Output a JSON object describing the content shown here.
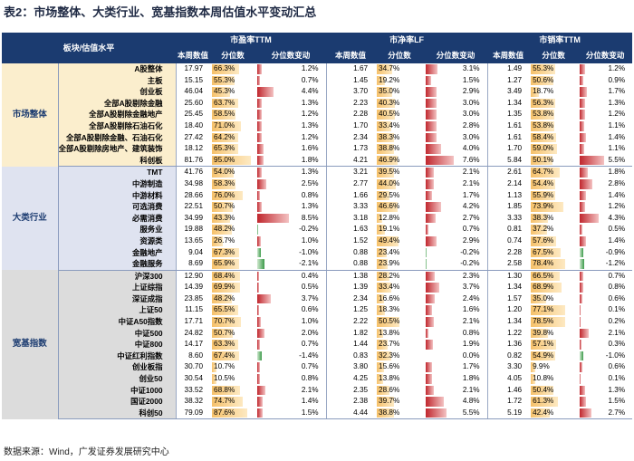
{
  "title": "表2：市场整体、大类行业、宽基指数本周估值水平变动汇总",
  "source": "数据来源：Wind，广发证券发展研究中心",
  "header": {
    "corner": "板块/估值水平",
    "groups": [
      "市盈率TTM",
      "市净率LF",
      "市销率TTM"
    ],
    "cols": [
      "本周数值",
      "分位数",
      "分位数变动"
    ]
  },
  "colors": {
    "header_bg": "#1b3b70",
    "pct_bar": "#f6c16a",
    "chg_pos": "#c0262d",
    "chg_neg": "#3c9a4a",
    "group1_bg": "#fbeecd",
    "group2_bg": "#dfe3f0",
    "group3_bg": "#dcdcdc"
  },
  "groups": [
    {
      "label": "市场整体",
      "rows": [
        {
          "name": "A股整体",
          "pe": [
            "17.97",
            "66.3%",
            "1.2%"
          ],
          "pb": [
            "1.67",
            "34.7%",
            "3.1%"
          ],
          "ps": [
            "1.49",
            "55.3%",
            "1.2%"
          ]
        },
        {
          "name": "主板",
          "pe": [
            "15.15",
            "55.3%",
            "0.7%"
          ],
          "pb": [
            "1.45",
            "19.2%",
            "1.5%"
          ],
          "ps": [
            "1.27",
            "50.6%",
            "0.9%"
          ]
        },
        {
          "name": "创业板",
          "pe": [
            "46.04",
            "45.3%",
            "4.4%"
          ],
          "pb": [
            "3.70",
            "35.0%",
            "2.9%"
          ],
          "ps": [
            "3.49",
            "18.7%",
            "1.7%"
          ]
        },
        {
          "name": "全部A股剔除金融",
          "pe": [
            "25.60",
            "63.7%",
            "1.3%"
          ],
          "pb": [
            "2.23",
            "40.3%",
            "3.0%"
          ],
          "ps": [
            "1.34",
            "56.3%",
            "1.3%"
          ]
        },
        {
          "name": "全部A股剔除金融地产",
          "pe": [
            "25.45",
            "58.5%",
            "1.2%"
          ],
          "pb": [
            "2.28",
            "40.5%",
            "3.0%"
          ],
          "ps": [
            "1.35",
            "53.8%",
            "1.2%"
          ]
        },
        {
          "name": "全部A股剔除石油石化",
          "pe": [
            "18.40",
            "71.0%",
            "1.3%"
          ],
          "pb": [
            "1.70",
            "33.4%",
            "2.8%"
          ],
          "ps": [
            "1.61",
            "53.8%",
            "1.1%"
          ]
        },
        {
          "name": "全部A股剔除金融、石油石化",
          "pe": [
            "27.42",
            "64.2%",
            "1.2%"
          ],
          "pb": [
            "2.34",
            "38.3%",
            "3.0%"
          ],
          "ps": [
            "1.61",
            "58.4%",
            "1.4%"
          ]
        },
        {
          "name": "全部A股剔除房地产、建筑装饰",
          "pe": [
            "18.12",
            "65.3%",
            "1.6%"
          ],
          "pb": [
            "1.73",
            "38.8%",
            "4.0%"
          ],
          "ps": [
            "1.70",
            "59.0%",
            "1.1%"
          ]
        },
        {
          "name": "科创板",
          "pe": [
            "81.76",
            "95.0%",
            "1.8%"
          ],
          "pb": [
            "4.21",
            "46.9%",
            "7.6%"
          ],
          "ps": [
            "5.84",
            "50.1%",
            "5.5%"
          ]
        }
      ]
    },
    {
      "label": "大类行业",
      "rows": [
        {
          "name": "TMT",
          "pe": [
            "41.76",
            "54.0%",
            "1.3%"
          ],
          "pb": [
            "3.21",
            "39.5%",
            "2.1%"
          ],
          "ps": [
            "2.61",
            "64.7%",
            "1.8%"
          ]
        },
        {
          "name": "中游制造",
          "pe": [
            "34.98",
            "58.3%",
            "2.5%"
          ],
          "pb": [
            "2.77",
            "44.0%",
            "2.1%"
          ],
          "ps": [
            "2.14",
            "54.4%",
            "2.8%"
          ]
        },
        {
          "name": "中游材料",
          "pe": [
            "28.66",
            "76.0%",
            "0.8%"
          ],
          "pb": [
            "1.66",
            "29.5%",
            "1.7%"
          ],
          "ps": [
            "1.13",
            "55.9%",
            "1.4%"
          ]
        },
        {
          "name": "可选消费",
          "pe": [
            "22.51",
            "50.7%",
            "1.3%"
          ],
          "pb": [
            "3.33",
            "46.6%",
            "4.2%"
          ],
          "ps": [
            "1.85",
            "73.9%",
            "1.2%"
          ]
        },
        {
          "name": "必需消费",
          "pe": [
            "34.99",
            "43.3%",
            "8.5%"
          ],
          "pb": [
            "3.18",
            "12.8%",
            "2.7%"
          ],
          "ps": [
            "3.33",
            "38.3%",
            "4.3%"
          ]
        },
        {
          "name": "服务业",
          "pe": [
            "19.88",
            "48.2%",
            "-0.2%"
          ],
          "pb": [
            "1.63",
            "19.1%",
            "0.7%"
          ],
          "ps": [
            "0.81",
            "37.2%",
            "0.5%"
          ]
        },
        {
          "name": "资源类",
          "pe": [
            "13.65",
            "26.7%",
            "1.0%"
          ],
          "pb": [
            "1.52",
            "49.4%",
            "2.9%"
          ],
          "ps": [
            "0.74",
            "57.6%",
            "1.4%"
          ]
        },
        {
          "name": "金融地产",
          "pe": [
            "9.04",
            "67.3%",
            "-1.0%"
          ],
          "pb": [
            "0.88",
            "23.4%",
            "-0.2%"
          ],
          "ps": [
            "2.28",
            "67.5%",
            "-0.9%"
          ]
        },
        {
          "name": "金融服务",
          "pe": [
            "8.69",
            "65.9%",
            "-2.1%"
          ],
          "pb": [
            "0.88",
            "23.9%",
            "-0.2%"
          ],
          "ps": [
            "2.58",
            "78.4%",
            "-1.2%"
          ]
        }
      ]
    },
    {
      "label": "宽基指数",
      "rows": [
        {
          "name": "沪深300",
          "pe": [
            "12.90",
            "68.4%",
            "0.4%"
          ],
          "pb": [
            "1.38",
            "28.2%",
            "2.3%"
          ],
          "ps": [
            "1.30",
            "66.5%",
            "0.7%"
          ]
        },
        {
          "name": "上证综指",
          "pe": [
            "14.39",
            "69.9%",
            "0.5%"
          ],
          "pb": [
            "1.39",
            "33.4%",
            "3.7%"
          ],
          "ps": [
            "1.34",
            "68.9%",
            "0.8%"
          ]
        },
        {
          "name": "深证成指",
          "pe": [
            "23.85",
            "48.2%",
            "3.7%"
          ],
          "pb": [
            "2.34",
            "16.6%",
            "2.4%"
          ],
          "ps": [
            "1.57",
            "35.0%",
            "0.6%"
          ]
        },
        {
          "name": "上证50",
          "pe": [
            "11.15",
            "65.5%",
            "0.6%"
          ],
          "pb": [
            "1.25",
            "18.3%",
            "1.6%"
          ],
          "ps": [
            "1.20",
            "77.1%",
            "0.1%"
          ]
        },
        {
          "name": "中证A50指数",
          "pe": [
            "17.71",
            "70.7%",
            "1.0%"
          ],
          "pb": [
            "2.22",
            "50.5%",
            "2.1%"
          ],
          "ps": [
            "1.34",
            "78.5%",
            "0.2%"
          ]
        },
        {
          "name": "中证500",
          "pe": [
            "24.82",
            "50.7%",
            "2.0%"
          ],
          "pb": [
            "1.82",
            "13.8%",
            "0.8%"
          ],
          "ps": [
            "1.22",
            "39.8%",
            "2.1%"
          ]
        },
        {
          "name": "中证800",
          "pe": [
            "14.17",
            "63.3%",
            "0.7%"
          ],
          "pb": [
            "1.44",
            "23.7%",
            "1.9%"
          ],
          "ps": [
            "1.36",
            "57.1%",
            "0.3%"
          ]
        },
        {
          "name": "中证红利指数",
          "pe": [
            "8.60",
            "67.4%",
            "-1.4%"
          ],
          "pb": [
            "0.83",
            "32.3%",
            "0.0%"
          ],
          "ps": [
            "0.82",
            "54.9%",
            "-1.0%"
          ]
        },
        {
          "name": "创业板指",
          "pe": [
            "30.70",
            "10.7%",
            "0.7%"
          ],
          "pb": [
            "3.80",
            "15.6%",
            "1.7%"
          ],
          "ps": [
            "3.30",
            "9.9%",
            "0.6%"
          ]
        },
        {
          "name": "创业50",
          "pe": [
            "30.54",
            "10.5%",
            "0.8%"
          ],
          "pb": [
            "4.25",
            "13.8%",
            "1.8%"
          ],
          "ps": [
            "4.05",
            "10.8%",
            "0.1%"
          ]
        },
        {
          "name": "中证1000",
          "pe": [
            "33.52",
            "68.8%",
            "2.1%"
          ],
          "pb": [
            "2.35",
            "28.6%",
            "2.1%"
          ],
          "ps": [
            "1.46",
            "50.4%",
            "1.3%"
          ]
        },
        {
          "name": "国证2000",
          "pe": [
            "38.32",
            "74.7%",
            "1.4%"
          ],
          "pb": [
            "2.38",
            "39.7%",
            "4.8%"
          ],
          "ps": [
            "1.72",
            "61.3%",
            "1.5%"
          ]
        },
        {
          "name": "科创50",
          "pe": [
            "79.09",
            "87.6%",
            "1.5%"
          ],
          "pb": [
            "4.44",
            "38.8%",
            "5.5%"
          ],
          "ps": [
            "5.19",
            "42.4%",
            "2.7%"
          ]
        }
      ]
    }
  ]
}
